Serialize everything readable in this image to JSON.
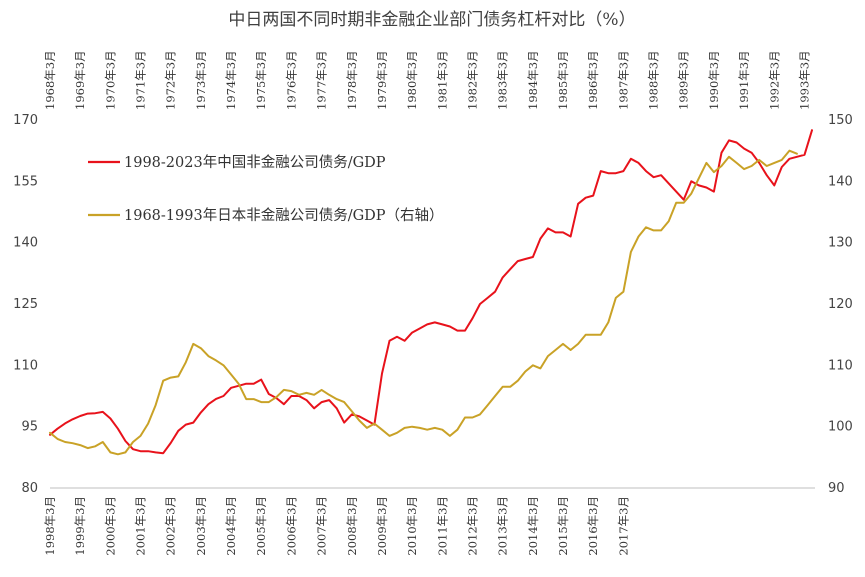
{
  "chart_data": {
    "type": "line",
    "title": "中日两国不同时期非金融企业部门债务杠杆对比（%）",
    "legend_position": "top-left",
    "grid": false,
    "x_bottom_ticks": [
      "1998年3月",
      "1999年3月",
      "2000年3月",
      "2001年3月",
      "2002年3月",
      "2003年3月",
      "2004年3月",
      "2005年3月",
      "2006年3月",
      "2007年3月",
      "2008年3月",
      "2009年3月",
      "2010年3月",
      "2011年3月",
      "2012年3月",
      "2013年3月",
      "2014年3月",
      "2015年3月",
      "2016年3月",
      "2017年3月"
    ],
    "x_top_ticks": [
      "1968年3月",
      "1969年3月",
      "1970年3月",
      "1971年3月",
      "1972年3月",
      "1973年3月",
      "1974年3月",
      "1975年3月",
      "1976年3月",
      "1977年3月",
      "1978年3月",
      "1979年3月",
      "1980年3月",
      "1981年3月",
      "1982年3月",
      "1983年3月",
      "1984年3月",
      "1985年3月",
      "1986年3月",
      "1987年3月",
      "1988年3月",
      "1989年3月",
      "1990年3月",
      "1991年3月",
      "1992年3月",
      "1993年3月"
    ],
    "y_left": {
      "min": 80,
      "max": 170,
      "ticks": [
        80,
        95,
        110,
        125,
        140,
        155,
        170
      ]
    },
    "y_right": {
      "min": 90,
      "max": 150,
      "ticks": [
        90,
        100,
        110,
        120,
        130,
        140,
        150
      ]
    },
    "series": [
      {
        "name": "1998-2023年中国非金融公司债务/GDP",
        "axis": "left",
        "color": "#e8121b",
        "start": "1998-Q1",
        "frequency": "quarterly",
        "values": [
          93,
          94.5,
          95.8,
          96.8,
          97.6,
          98.2,
          98.3,
          98.6,
          97,
          94.5,
          91.5,
          89.5,
          89,
          89,
          88.7,
          88.5,
          91,
          94,
          95.5,
          96,
          98.5,
          100.5,
          101.8,
          102.5,
          104.5,
          105,
          105.5,
          105.5,
          106.5,
          103,
          102,
          100.5,
          102.5,
          102.5,
          101.5,
          99.5,
          101,
          101.5,
          99.5,
          96,
          98,
          97.5,
          96.5,
          95.5,
          108,
          116,
          117,
          116,
          118,
          119,
          120,
          120.5,
          120,
          119.5,
          118.5,
          118.5,
          121.5,
          125,
          126.5,
          128,
          131.5,
          133.5,
          135.5,
          136,
          136.5,
          141,
          143.5,
          142.5,
          142.5,
          141.5,
          149.5,
          151,
          151.5,
          157.5,
          157,
          157,
          157.5,
          160.5,
          159.5,
          157.5,
          156,
          156.5,
          154.5,
          152.5,
          150.5,
          155,
          154,
          153.5,
          152.5,
          162,
          165,
          164.5,
          163,
          162,
          159.5,
          156.5,
          154,
          158.5,
          160.5,
          161,
          161.5,
          167.5
        ]
      },
      {
        "name": "1968-1993年日本非金融公司债务/GDP（右轴）",
        "axis": "right",
        "color": "#c9a227",
        "start": "1968-Q1",
        "frequency": "quarterly",
        "values": [
          99,
          98,
          97.5,
          97.3,
          97,
          96.5,
          96.8,
          97.5,
          95.8,
          95.5,
          95.8,
          97.5,
          98.5,
          100.5,
          103.5,
          107.5,
          108,
          108.2,
          110.5,
          113.5,
          112.8,
          111.5,
          110.8,
          110,
          108.5,
          107,
          104.5,
          104.5,
          104,
          104,
          104.8,
          106,
          105.8,
          105.2,
          105.5,
          105.2,
          106,
          105.2,
          104.5,
          104,
          102.5,
          101,
          99.8,
          100.5,
          99.5,
          98.5,
          99,
          99.8,
          100,
          99.8,
          99.5,
          99.8,
          99.5,
          98.5,
          99.5,
          101.5,
          101.5,
          102,
          103.5,
          105,
          106.5,
          106.5,
          107.5,
          109,
          110,
          109.5,
          111.5,
          112.5,
          113.5,
          112.5,
          113.5,
          115,
          115,
          115,
          117,
          121,
          122,
          128.5,
          131,
          132.5,
          132,
          132,
          133.5,
          136.5,
          136.5,
          138,
          140.5,
          143,
          141.5,
          142.5,
          144,
          143,
          142,
          142.5,
          143.5,
          142.5,
          143,
          143.5,
          145,
          144.5
        ]
      }
    ]
  }
}
